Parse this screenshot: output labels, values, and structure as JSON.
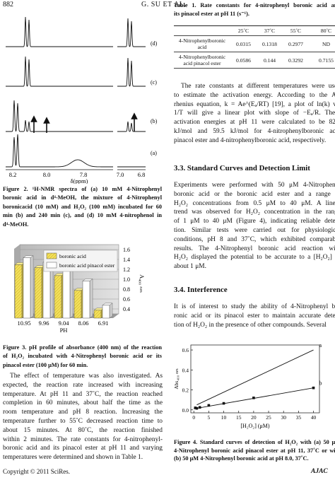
{
  "header": {
    "page_number": "882",
    "running_title": "G. SU ET AL."
  },
  "figure_2": {
    "panel_labels": [
      "(d)",
      "(c)",
      "(b)",
      "(a)"
    ],
    "x_tick_labels": [
      "8.2",
      "8.0",
      "7.8",
      "7.0",
      "6.8"
    ],
    "x_label": "δ(ppm)",
    "caption": [
      "Figure 2. ¹H-NMR spectra of (a) 10 mM 4-Nitrophenyl",
      "boronic acid in d⁴-MeOH, the mixture of 4-Nitrophenyl",
      "boronicacid (10 mM) and H₂O₂ (100 mM) incubated for 60",
      "min (b) and 240 min (c), and (d) 10 mM 4-nitrophenol in",
      "d⁴-MeOH."
    ]
  },
  "figure_3": {
    "chart_data": {
      "type": "bar",
      "categories": [
        "10.95",
        "9.96",
        "9.04",
        "8.06",
        "6.91"
      ],
      "x_label": "PH",
      "y_label": "A₄₀₀ ₙₘ",
      "series": [
        {
          "name": "boronic acid",
          "color": "#f3e15c",
          "values": [
            1.38,
            1.32,
            1.16,
            0.86,
            0.46
          ]
        },
        {
          "name": "boronic acid pinacol ester",
          "color": "#ffffff",
          "values": [
            1.52,
            1.43,
            1.26,
            1.05,
            0.56
          ]
        }
      ],
      "ylim": [
        0.3,
        1.7
      ],
      "yticks": [
        0.4,
        0.6,
        0.8,
        {
          "value": 1,
          "label": "1.0"
        },
        1.2,
        1.4,
        1.6
      ]
    },
    "caption": [
      "Figure 3. pH profile of absorbance (400 nm) of the reaction",
      "of H₂O₂ incubated with 4-Nitrophenyl boronic acid or its",
      "pinacol ester (100 μM) for 60 min."
    ]
  },
  "paragraph_left": [
    "The effect of temperature was also investigated. As",
    "expected, the reaction rate increased with increasing",
    "temperature. At pH 11 and 37˚C, the reaction reached",
    "completion in 60 minutes, about half the time as the",
    "room temperature and pH 8 reaction. Increasing the",
    "temperature further to 55˚C decreased reaction time to",
    "about 15 minutes. At 80˚C, the reaction finished",
    "within 2 minutes. The rate constants for 4-nitrophenyl-",
    "boronic acid and its pinacol ester at pH 11 and varying",
    "temperatures were determined and shown in Table 1."
  ],
  "table_1": {
    "caption": [
      "Table 1. Rate constants for 4-nitrophenyl boronic acid and",
      "its pinacol ester at pH 11 (s⁻¹)."
    ],
    "header": [
      "25˚C",
      "37˚C",
      "55˚C",
      "80˚C"
    ],
    "rows": [
      [
        "4-Nitrophenylboronic acid",
        "0.0315",
        "0.1318",
        "0.2977",
        "ND"
      ],
      [
        "4-Nitrophenylboronic acid pinacol ester",
        "0.0586",
        "0.144",
        "0.3292",
        "0.7155"
      ]
    ]
  },
  "paragraph_right_1": [
    "The rate constants at different temperatures were used",
    "to estimate the activation energy. According to the Ar-",
    "rhenius equation, k = Ae^(Eₐ/RT) [19], a plot of ln(k) vs.",
    "1/T will give a linear plot with slope of −Eₐ/R. These",
    "activation energies at pH 11 were calculated to be 82.4",
    "kJ/mol and 59.5 kJ/mol for 4-nitrophenylboronic acid",
    "pinacol ester and 4-nitrophenylboronic acid, respectively."
  ],
  "section_3_3": {
    "heading": "3.3. Standard Curves and Detection Limit",
    "paragraph": [
      "Experiments were performed with 50 μM 4-Nitrophenyl",
      "boronic acid or the boronic acid ester and a range of",
      "H₂O₂ concentrations from 0.5 μM to 40 μM. A linear",
      "trend was observed for H₂O₂ concentration in the range",
      "of 1 μM to 40 μM (Figure 4), indicating reliable detec-",
      "tion. Similar tests were carried out for physiological",
      "conditions, pH 8 and 37˚C, which exhibited comparable",
      "results. The 4-Nitrophenyl boronic acid reaction with",
      "H₂O₂ displayed the potential to be accurate to a [H₂O₂] of",
      "about 1 μM."
    ]
  },
  "section_3_4": {
    "heading": "3.4. Interference",
    "paragraph": [
      "It is of interest to study the ability of 4-Nitrophenyl bo-",
      "ronic acid or its pinacol ester to maintain accurate detec-",
      "tion of H₂O₂ in the presence of other compounds. Several"
    ]
  },
  "figure_4": {
    "chart_data": {
      "type": "scatter",
      "x_label": "[H₂O₂] (μM)",
      "y_label": "Abs₄₀₀ ₙₘ",
      "lines": [
        {
          "label": "a",
          "x": [
            1,
            40
          ],
          "values": [
            0.05,
            0.6
          ]
        },
        {
          "label": "b",
          "x": [
            0,
            40
          ],
          "values": [
            0.01,
            0.22
          ]
        }
      ],
      "points": {
        "x": [
          0.5,
          1,
          2,
          5,
          10,
          20,
          40
        ],
        "values": [
          0.02,
          0.015,
          0.025,
          0.045,
          0.065,
          0.12,
          0.22
        ]
      },
      "xlim": [
        -1,
        42
      ],
      "xticks": [
        0,
        5,
        10,
        15,
        20,
        25,
        30,
        35,
        40
      ],
      "ylim": [
        -0.03,
        0.65
      ],
      "yticks": [
        {
          "value": 0,
          "label": "0.0"
        },
        0.2,
        0.4,
        0.6
      ]
    },
    "caption": [
      "Figure 4. Standard curves of detection of H₂O₂ with (a) 50 μM",
      "4-Nitrophenyl boronic acid pinacol ester at pH 11, 37˚C or with",
      "(b) 50 μM 4-Nitrophenyl boronic acid at pH 8.0, 37˚C."
    ]
  },
  "footer": {
    "copyright": "Copyright © 2011 SciRes.",
    "journal": "AJAC"
  }
}
